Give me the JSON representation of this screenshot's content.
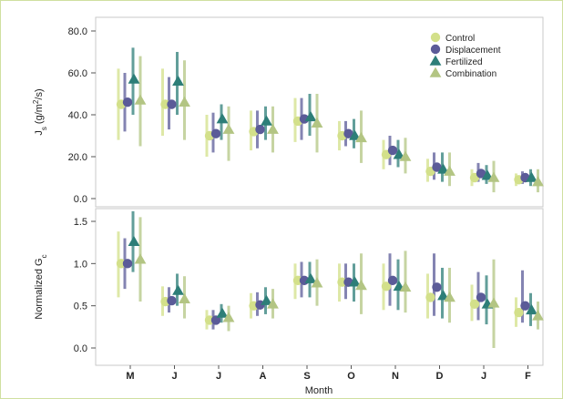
{
  "chart_data": [
    {
      "type": "scatter",
      "panel": "top",
      "ylabel_main": "J",
      "ylabel_sub": "s",
      "ylabel_unit_pre": " (g/m",
      "ylabel_unit_sup": "2",
      "ylabel_unit_post": "/s)",
      "ylim": [
        0,
        80
      ],
      "yticks": [
        "80.0",
        "60.0",
        "40.0",
        "20.0",
        "0.0"
      ],
      "categories": [
        "M",
        "J",
        "J",
        "A",
        "S",
        "O",
        "N",
        "D",
        "J",
        "F"
      ],
      "legend": {
        "placement": "top-right"
      },
      "series": [
        {
          "name": "Control",
          "color": "#d3e08a",
          "marker": "circle",
          "values": [
            45,
            45,
            30,
            32,
            37,
            30,
            21,
            13,
            10,
            9
          ],
          "err_low": [
            28,
            30,
            20,
            23,
            27,
            23,
            14,
            8,
            6,
            6
          ],
          "err_high": [
            62,
            62,
            40,
            42,
            48,
            37,
            28,
            19,
            14,
            12
          ]
        },
        {
          "name": "Displacement",
          "color": "#5b5b98",
          "marker": "circle",
          "values": [
            46,
            45,
            31,
            33,
            38,
            31,
            23,
            15,
            12,
            10
          ],
          "err_low": [
            32,
            33,
            22,
            24,
            28,
            25,
            16,
            9,
            8,
            7
          ],
          "err_high": [
            60,
            58,
            41,
            42,
            48,
            37,
            30,
            22,
            17,
            13
          ]
        },
        {
          "name": "Fertilized",
          "color": "#2d7e78",
          "marker": "triangle",
          "values": [
            57,
            56,
            38,
            37,
            39,
            30,
            21,
            14,
            11,
            10
          ],
          "err_low": [
            40,
            40,
            28,
            28,
            30,
            24,
            15,
            8,
            7,
            6
          ],
          "err_high": [
            72,
            70,
            45,
            44,
            50,
            38,
            28,
            22,
            16,
            14
          ]
        },
        {
          "name": "Combination",
          "color": "#b3c583",
          "marker": "triangle",
          "values": [
            47,
            46,
            33,
            33,
            36,
            29,
            20,
            13,
            10,
            8
          ],
          "err_low": [
            25,
            28,
            18,
            22,
            22,
            17,
            12,
            6,
            3,
            3
          ],
          "err_high": [
            68,
            66,
            44,
            44,
            50,
            42,
            29,
            22,
            18,
            14
          ]
        }
      ]
    },
    {
      "type": "scatter",
      "panel": "bottom",
      "ylabel_main": "Normalized G",
      "ylabel_sub": "c",
      "ylim": [
        0,
        1.6
      ],
      "yticks": [
        "1.5",
        "1.0",
        "0.5",
        "0.0"
      ],
      "xlabel": "Month",
      "categories": [
        "M",
        "J",
        "J",
        "A",
        "S",
        "O",
        "N",
        "D",
        "J",
        "F"
      ],
      "series": [
        {
          "name": "Control",
          "color": "#d3e08a",
          "marker": "circle",
          "values": [
            1.0,
            0.55,
            0.33,
            0.5,
            0.8,
            0.78,
            0.73,
            0.6,
            0.52,
            0.42
          ],
          "err_low": [
            0.6,
            0.38,
            0.22,
            0.35,
            0.58,
            0.55,
            0.45,
            0.35,
            0.32,
            0.25
          ],
          "err_high": [
            1.38,
            0.73,
            0.45,
            0.65,
            1.0,
            1.0,
            1.0,
            0.88,
            0.75,
            0.6
          ]
        },
        {
          "name": "Displacement",
          "color": "#5b5b98",
          "marker": "circle",
          "values": [
            1.0,
            0.56,
            0.33,
            0.51,
            0.8,
            0.78,
            0.8,
            0.72,
            0.6,
            0.5
          ],
          "err_low": [
            0.7,
            0.42,
            0.22,
            0.38,
            0.6,
            0.58,
            0.5,
            0.38,
            0.33,
            0.3
          ],
          "err_high": [
            1.3,
            0.72,
            0.45,
            0.66,
            1.02,
            1.0,
            1.12,
            1.12,
            0.9,
            0.92
          ]
        },
        {
          "name": "Fertilized",
          "color": "#2d7e78",
          "marker": "triangle",
          "values": [
            1.26,
            0.68,
            0.41,
            0.56,
            0.82,
            0.78,
            0.73,
            0.62,
            0.52,
            0.45
          ],
          "err_low": [
            0.9,
            0.5,
            0.3,
            0.4,
            0.6,
            0.55,
            0.45,
            0.35,
            0.28,
            0.26
          ],
          "err_high": [
            1.62,
            0.88,
            0.52,
            0.72,
            1.02,
            1.0,
            1.05,
            0.95,
            0.86,
            0.65
          ]
        },
        {
          "name": "Combination",
          "color": "#b3c583",
          "marker": "triangle",
          "values": [
            1.05,
            0.58,
            0.36,
            0.52,
            0.77,
            0.74,
            0.72,
            0.6,
            0.53,
            0.38
          ],
          "err_low": [
            0.55,
            0.35,
            0.2,
            0.35,
            0.5,
            0.4,
            0.42,
            0.3,
            0.0,
            0.22
          ],
          "err_high": [
            1.55,
            0.85,
            0.5,
            0.7,
            1.05,
            1.12,
            1.15,
            0.95,
            1.05,
            0.55
          ]
        }
      ]
    }
  ]
}
